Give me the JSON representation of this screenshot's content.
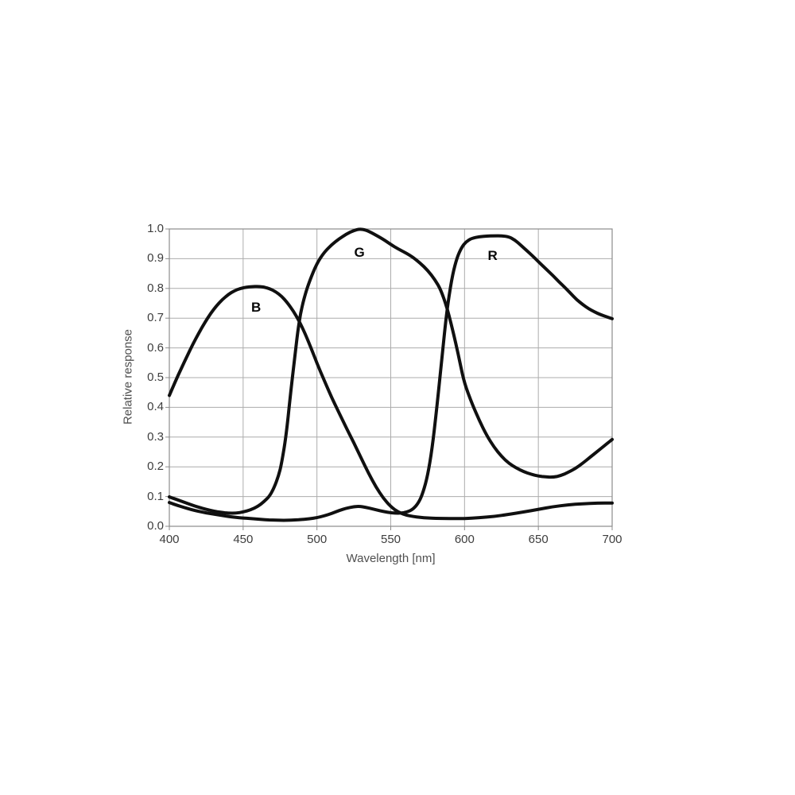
{
  "chart_data": {
    "type": "line",
    "title": "",
    "xlabel": "Wavelength [nm]",
    "ylabel": "Relative response",
    "xlim": [
      400,
      700
    ],
    "ylim": [
      0.0,
      1.0
    ],
    "grid": true,
    "legend_position": "inline-labels",
    "x_ticks": [
      "400",
      "450",
      "500",
      "550",
      "600",
      "650",
      "700"
    ],
    "y_ticks": [
      "0.0",
      "0.1",
      "0.2",
      "0.3",
      "0.4",
      "0.5",
      "0.6",
      "0.7",
      "0.8",
      "0.9",
      "1.0"
    ],
    "colors": {
      "curve": "#101010",
      "grid": "#acacac",
      "frame": "#8c8c8c",
      "tick_text": "#3d3d3d",
      "axis_title_text": "#4f4f4f",
      "background": "#ffffff"
    },
    "series": [
      {
        "name": "B",
        "label": "B",
        "label_at": [
          458.8,
          0.735
        ],
        "points": [
          [
            400,
            0.44
          ],
          [
            404,
            0.486
          ],
          [
            408,
            0.53
          ],
          [
            412,
            0.572
          ],
          [
            416,
            0.613
          ],
          [
            420,
            0.65
          ],
          [
            424,
            0.685
          ],
          [
            428,
            0.716
          ],
          [
            432,
            0.742
          ],
          [
            436,
            0.763
          ],
          [
            440,
            0.78
          ],
          [
            444,
            0.792
          ],
          [
            448,
            0.8
          ],
          [
            452,
            0.804
          ],
          [
            456,
            0.806
          ],
          [
            460,
            0.807
          ],
          [
            464,
            0.805
          ],
          [
            468,
            0.799
          ],
          [
            472,
            0.789
          ],
          [
            476,
            0.774
          ],
          [
            480,
            0.752
          ],
          [
            484,
            0.724
          ],
          [
            488,
            0.69
          ],
          [
            492,
            0.648
          ],
          [
            496,
            0.6
          ],
          [
            500,
            0.548
          ],
          [
            505,
            0.49
          ],
          [
            510,
            0.433
          ],
          [
            515,
            0.381
          ],
          [
            520,
            0.33
          ],
          [
            525,
            0.281
          ],
          [
            530,
            0.229
          ],
          [
            535,
            0.178
          ],
          [
            540,
            0.132
          ],
          [
            545,
            0.094
          ],
          [
            550,
            0.066
          ],
          [
            555,
            0.048
          ],
          [
            560,
            0.038
          ],
          [
            565,
            0.033
          ],
          [
            570,
            0.03
          ],
          [
            575,
            0.028
          ],
          [
            580,
            0.027
          ],
          [
            590,
            0.026
          ],
          [
            600,
            0.026
          ],
          [
            610,
            0.029
          ],
          [
            620,
            0.033
          ],
          [
            630,
            0.04
          ],
          [
            640,
            0.048
          ],
          [
            650,
            0.057
          ],
          [
            660,
            0.066
          ],
          [
            670,
            0.072
          ],
          [
            680,
            0.076
          ],
          [
            690,
            0.078
          ],
          [
            700,
            0.078
          ]
        ]
      },
      {
        "name": "G",
        "label": "G",
        "label_at": [
          528.8,
          0.92
        ],
        "points": [
          [
            400,
            0.099
          ],
          [
            405,
            0.09
          ],
          [
            410,
            0.081
          ],
          [
            415,
            0.072
          ],
          [
            420,
            0.064
          ],
          [
            425,
            0.057
          ],
          [
            430,
            0.051
          ],
          [
            435,
            0.047
          ],
          [
            440,
            0.044
          ],
          [
            445,
            0.044
          ],
          [
            450,
            0.048
          ],
          [
            455,
            0.055
          ],
          [
            460,
            0.067
          ],
          [
            464,
            0.082
          ],
          [
            468,
            0.102
          ],
          [
            471,
            0.13
          ],
          [
            474,
            0.17
          ],
          [
            476,
            0.21
          ],
          [
            479,
            0.3
          ],
          [
            482,
            0.44
          ],
          [
            485,
            0.57
          ],
          [
            487,
            0.655
          ],
          [
            489,
            0.72
          ],
          [
            492,
            0.78
          ],
          [
            495,
            0.825
          ],
          [
            500,
            0.885
          ],
          [
            505,
            0.922
          ],
          [
            510,
            0.947
          ],
          [
            515,
            0.967
          ],
          [
            520,
            0.983
          ],
          [
            525,
            0.995
          ],
          [
            529,
            1.0
          ],
          [
            533,
            0.997
          ],
          [
            538,
            0.985
          ],
          [
            545,
            0.965
          ],
          [
            550,
            0.948
          ],
          [
            555,
            0.933
          ],
          [
            560,
            0.92
          ],
          [
            565,
            0.905
          ],
          [
            570,
            0.885
          ],
          [
            575,
            0.861
          ],
          [
            580,
            0.829
          ],
          [
            584,
            0.795
          ],
          [
            588,
            0.737
          ],
          [
            591,
            0.68
          ],
          [
            594,
            0.617
          ],
          [
            597,
            0.548
          ],
          [
            600,
            0.48
          ],
          [
            605,
            0.413
          ],
          [
            610,
            0.356
          ],
          [
            615,
            0.306
          ],
          [
            620,
            0.266
          ],
          [
            625,
            0.235
          ],
          [
            630,
            0.212
          ],
          [
            635,
            0.196
          ],
          [
            640,
            0.184
          ],
          [
            645,
            0.175
          ],
          [
            650,
            0.169
          ],
          [
            655,
            0.166
          ],
          [
            660,
            0.165
          ],
          [
            665,
            0.17
          ],
          [
            670,
            0.181
          ],
          [
            675,
            0.194
          ],
          [
            680,
            0.212
          ],
          [
            685,
            0.232
          ],
          [
            690,
            0.252
          ],
          [
            695,
            0.272
          ],
          [
            700,
            0.292
          ]
        ]
      },
      {
        "name": "R",
        "label": "R",
        "label_at": [
          619.0,
          0.908
        ],
        "points": [
          [
            400,
            0.08
          ],
          [
            405,
            0.071
          ],
          [
            410,
            0.063
          ],
          [
            415,
            0.056
          ],
          [
            420,
            0.05
          ],
          [
            425,
            0.045
          ],
          [
            430,
            0.041
          ],
          [
            435,
            0.037
          ],
          [
            440,
            0.033
          ],
          [
            445,
            0.03
          ],
          [
            450,
            0.028
          ],
          [
            455,
            0.026
          ],
          [
            460,
            0.024
          ],
          [
            465,
            0.022
          ],
          [
            470,
            0.021
          ],
          [
            475,
            0.02
          ],
          [
            480,
            0.02
          ],
          [
            485,
            0.021
          ],
          [
            490,
            0.023
          ],
          [
            495,
            0.025
          ],
          [
            500,
            0.029
          ],
          [
            505,
            0.035
          ],
          [
            510,
            0.043
          ],
          [
            515,
            0.053
          ],
          [
            520,
            0.061
          ],
          [
            525,
            0.066
          ],
          [
            529,
            0.067
          ],
          [
            533,
            0.064
          ],
          [
            538,
            0.058
          ],
          [
            543,
            0.052
          ],
          [
            548,
            0.047
          ],
          [
            553,
            0.044
          ],
          [
            557,
            0.044
          ],
          [
            561,
            0.048
          ],
          [
            565,
            0.057
          ],
          [
            569,
            0.08
          ],
          [
            572,
            0.115
          ],
          [
            575,
            0.17
          ],
          [
            578,
            0.26
          ],
          [
            581,
            0.39
          ],
          [
            584,
            0.53
          ],
          [
            587,
            0.68
          ],
          [
            589,
            0.76
          ],
          [
            592,
            0.85
          ],
          [
            595,
            0.905
          ],
          [
            598,
            0.938
          ],
          [
            601,
            0.957
          ],
          [
            605,
            0.969
          ],
          [
            610,
            0.974
          ],
          [
            615,
            0.976
          ],
          [
            620,
            0.977
          ],
          [
            625,
            0.977
          ],
          [
            630,
            0.974
          ],
          [
            634,
            0.963
          ],
          [
            638,
            0.946
          ],
          [
            642,
            0.928
          ],
          [
            646,
            0.91
          ],
          [
            650,
            0.89
          ],
          [
            655,
            0.866
          ],
          [
            660,
            0.843
          ],
          [
            664,
            0.822
          ],
          [
            668,
            0.803
          ],
          [
            672,
            0.783
          ],
          [
            676,
            0.762
          ],
          [
            680,
            0.746
          ],
          [
            684,
            0.732
          ],
          [
            688,
            0.721
          ],
          [
            692,
            0.712
          ],
          [
            696,
            0.705
          ],
          [
            700,
            0.698
          ]
        ]
      }
    ]
  }
}
